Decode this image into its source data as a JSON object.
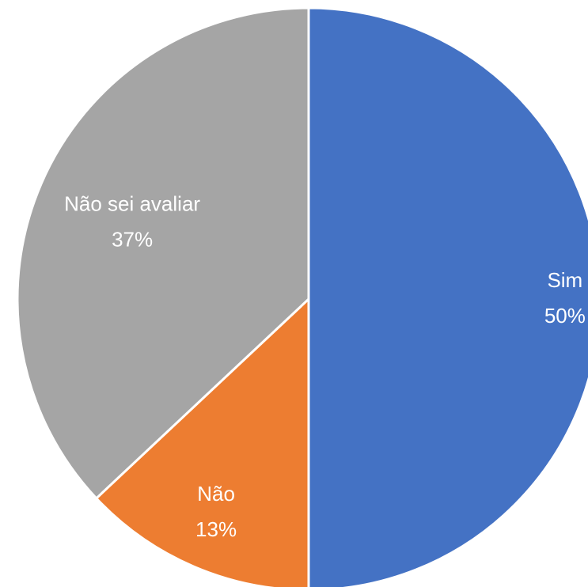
{
  "chart_data": {
    "type": "pie",
    "categories": [
      "Sim",
      "Não",
      "Não sei avaliar"
    ],
    "values": [
      50,
      13,
      37
    ],
    "value_labels": [
      "50%",
      "13%",
      "37%"
    ],
    "colors": [
      "#4472c4",
      "#ed7d31",
      "#a5a5a5"
    ]
  }
}
